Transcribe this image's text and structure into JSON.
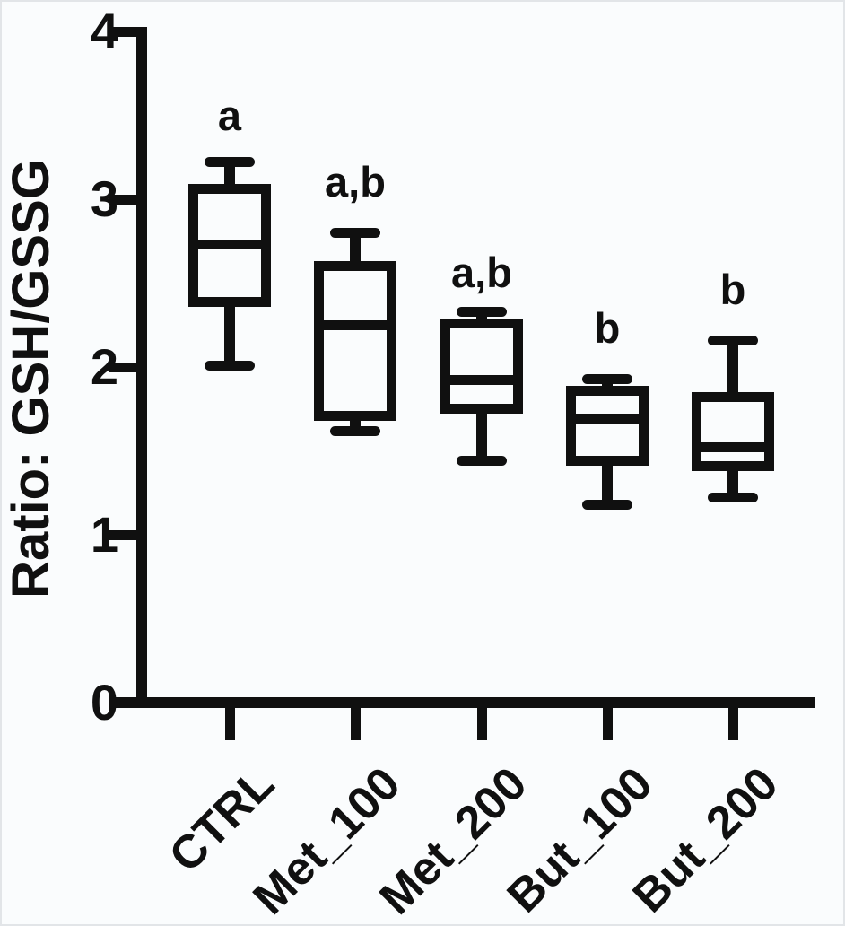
{
  "figure": {
    "background_color": "#fafcfd",
    "ink_color": "#101010",
    "border_color": "#e2e5e8"
  },
  "chart_data": {
    "type": "box",
    "title": "",
    "xlabel": "",
    "ylabel": "Ratio: GSH/GSSG",
    "ylim": [
      0,
      4
    ],
    "yticks": [
      "0",
      "1",
      "2",
      "3",
      "4"
    ],
    "grid": false,
    "legend": null,
    "categories": [
      "CTRL",
      "Met_100",
      "Met_200",
      "But_100",
      "But_200"
    ],
    "boxes": [
      {
        "category": "CTRL",
        "whisker_min": 2.01,
        "q1": 2.39,
        "median": 2.73,
        "q3": 3.06,
        "whisker_max": 3.22,
        "sig_label": "a",
        "sig_label_y": 3.5
      },
      {
        "category": "Met_100",
        "whisker_min": 1.62,
        "q1": 1.71,
        "median": 2.25,
        "q3": 2.6,
        "whisker_max": 2.8,
        "sig_label": "a,b",
        "sig_label_y": 3.1
      },
      {
        "category": "Met_200",
        "whisker_min": 1.44,
        "q1": 1.75,
        "median": 1.92,
        "q3": 2.26,
        "whisker_max": 2.33,
        "sig_label": "a,b",
        "sig_label_y": 2.56
      },
      {
        "category": "But_100",
        "whisker_min": 1.18,
        "q1": 1.44,
        "median": 1.69,
        "q3": 1.86,
        "whisker_max": 1.93,
        "sig_label": "b",
        "sig_label_y": 2.23
      },
      {
        "category": "But_200",
        "whisker_min": 1.22,
        "q1": 1.41,
        "median": 1.52,
        "q3": 1.82,
        "whisker_max": 2.16,
        "sig_label": "b",
        "sig_label_y": 2.46
      }
    ]
  }
}
